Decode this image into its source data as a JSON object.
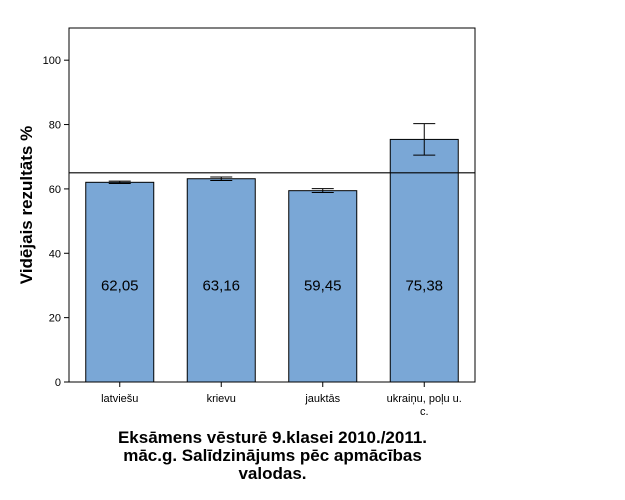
{
  "chart_data": {
    "type": "bar",
    "title": "Eksāmens vēsturē 9.klasei 2010./2011.\nmāc.g. Salīdzinājums pēc apmācības\nvalodas.",
    "xlabel": "",
    "ylabel": "Vidējais rezultāts %",
    "ylim": [
      0,
      110
    ],
    "yticks": [
      0,
      20,
      40,
      60,
      80,
      100
    ],
    "categories": [
      "latviešu",
      "krievu",
      "jauktās",
      "ukraiņu, poļu u. c."
    ],
    "values": [
      62.05,
      63.16,
      59.45,
      75.38
    ],
    "value_labels": [
      "62,05",
      "63,16",
      "59,45",
      "75,38"
    ],
    "error_bars": [
      {
        "low": 61.7,
        "high": 62.4
      },
      {
        "low": 62.6,
        "high": 63.7
      },
      {
        "low": 58.9,
        "high": 60.1
      },
      {
        "low": 70.5,
        "high": 80.3
      }
    ],
    "reference_line": 65,
    "bar_color": "#7aa7d6",
    "grid": false
  }
}
